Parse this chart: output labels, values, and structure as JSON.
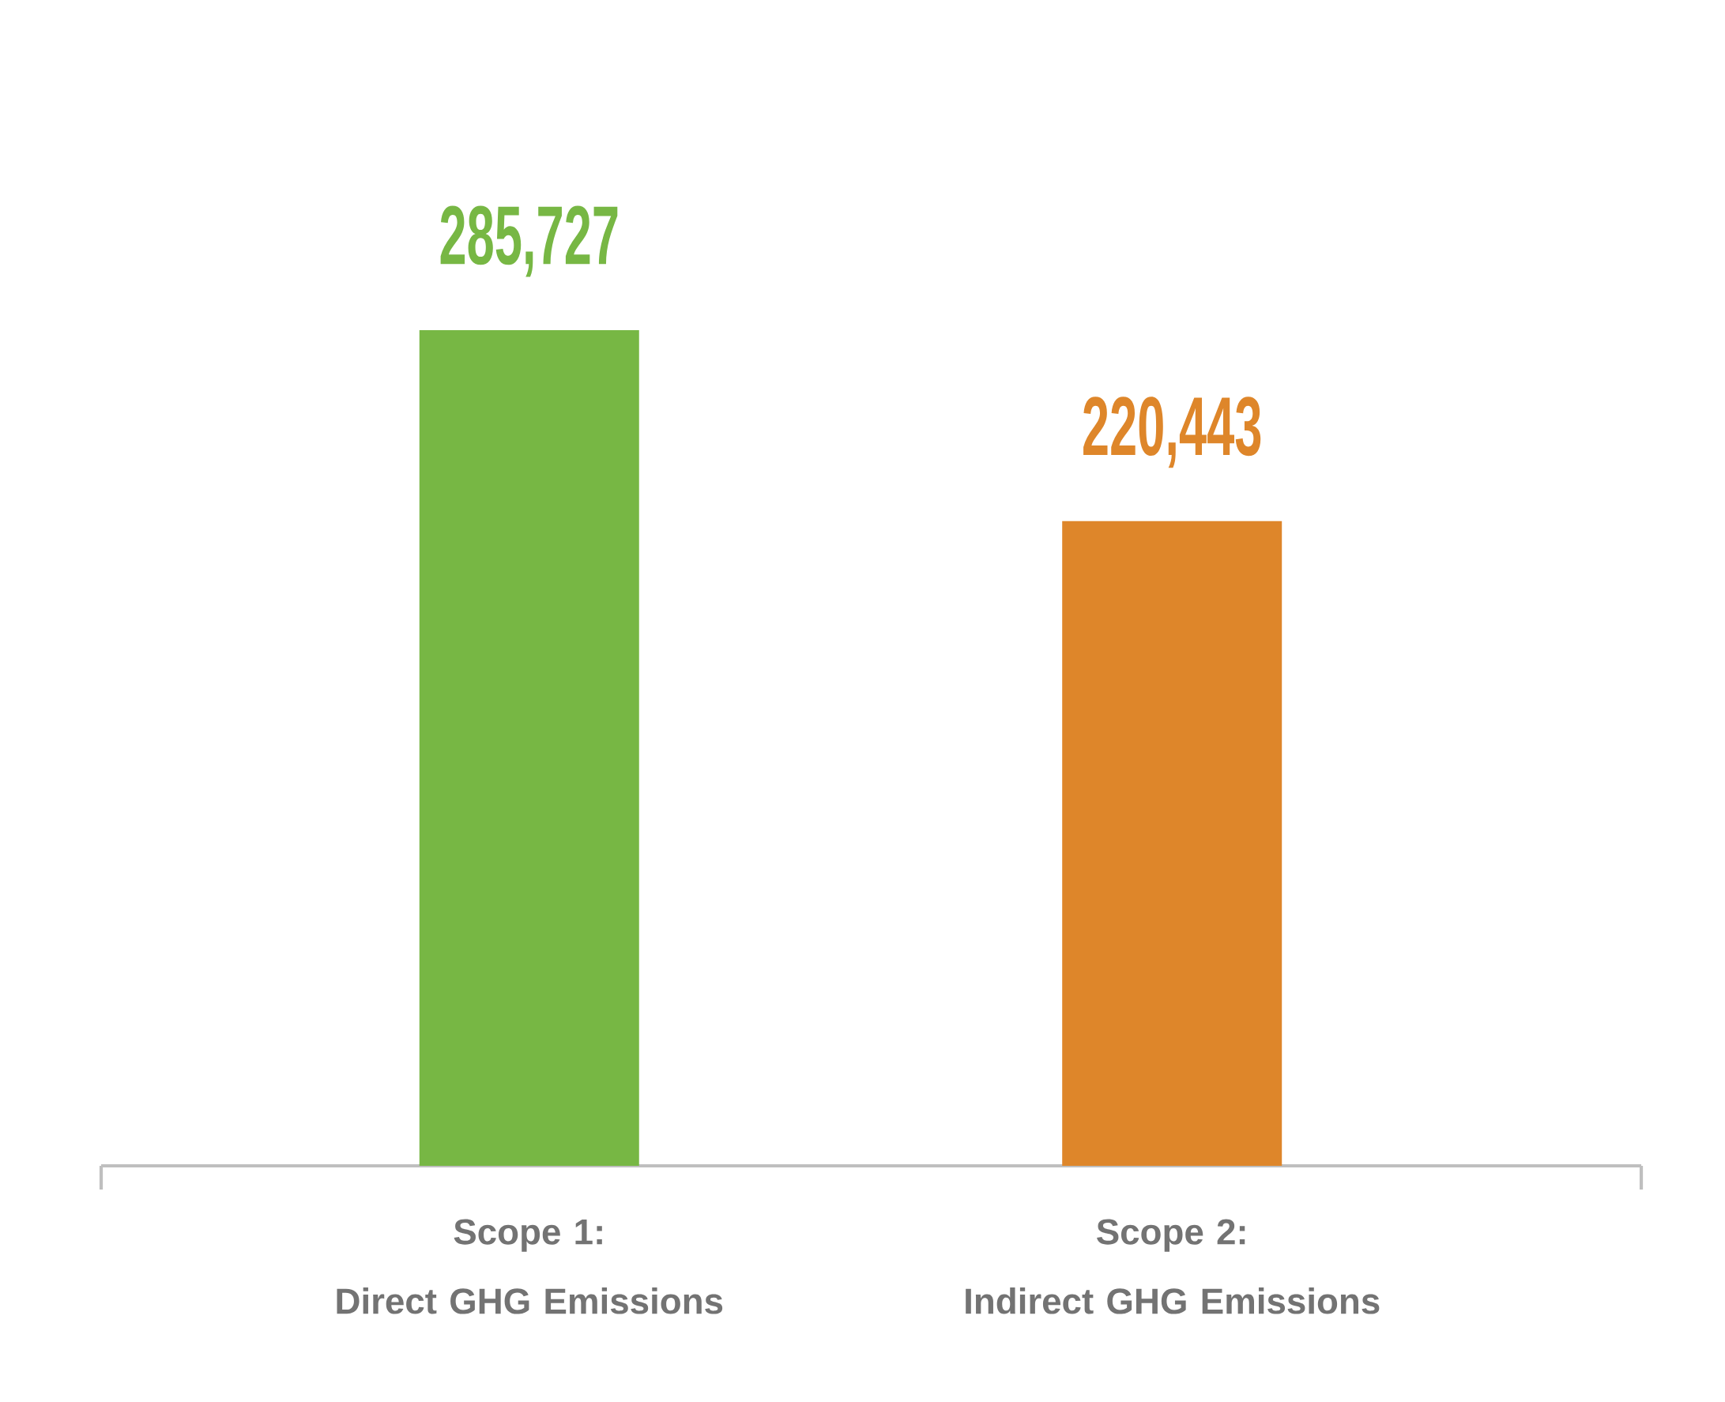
{
  "chart_data": {
    "type": "bar",
    "categories": [
      "Scope 1:\nDirect GHG Emissions",
      "Scope 2:\nIndirect GHG Emissions"
    ],
    "values": [
      285727,
      220443
    ],
    "colors": [
      "#77b744",
      "#de862a"
    ],
    "value_labels": [
      "285,727",
      "220,443"
    ]
  }
}
